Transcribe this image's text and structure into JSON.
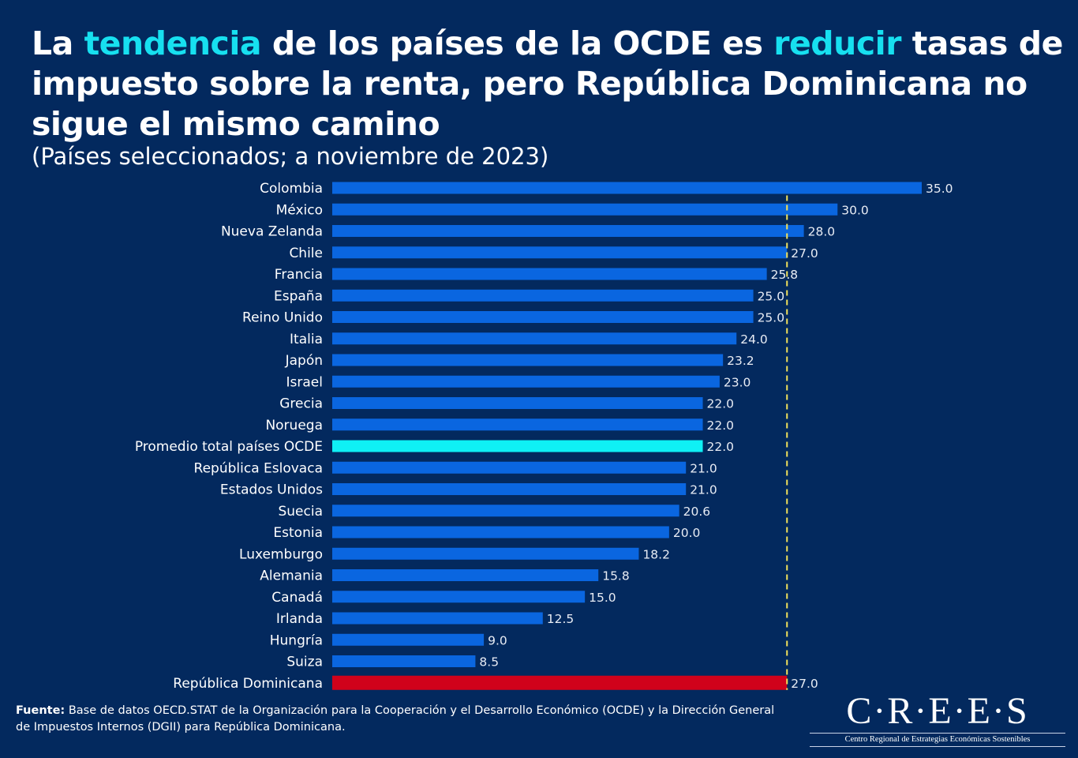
{
  "header": {
    "title_parts": [
      {
        "text": "La ",
        "highlight": false
      },
      {
        "text": "tendencia",
        "highlight": true
      },
      {
        "text": " de los países de la OCDE es ",
        "highlight": false
      },
      {
        "text": "reducir",
        "highlight": true
      },
      {
        "text": " tasas de impuesto sobre la renta, pero República Dominicana no sigue el mismo camino",
        "highlight": false
      }
    ],
    "subtitle": "(Países seleccionados; a noviembre de 2023)"
  },
  "colors": {
    "background": "#03295e",
    "bar_default": "#0a66e0",
    "bar_average": "#0ff0f5",
    "bar_dominican": "#d0021b",
    "highlight_text": "#17e0f0",
    "reference_line": "#f3e25a"
  },
  "chart_data": {
    "type": "bar",
    "orientation": "horizontal",
    "title": "La tendencia de los países de la OCDE es reducir tasas de impuesto sobre la renta, pero República Dominicana no sigue el mismo camino",
    "subtitle": "(Países seleccionados; a noviembre de 2023)",
    "xlabel": "",
    "ylabel": "",
    "xlim": [
      0,
      35
    ],
    "grid": false,
    "legend": "none",
    "categories": [
      "Colombia",
      "México",
      "Nueva Zelanda",
      "Chile",
      "Francia",
      "España",
      "Reino Unido",
      "Italia",
      "Japón",
      "Israel",
      "Grecia",
      "Noruega",
      "Promedio total países OCDE",
      "República Eslovaca",
      "Estados Unidos",
      "Suecia",
      "Estonia",
      "Luxemburgo",
      "Alemania",
      "Canadá",
      "Irlanda",
      "Hungría",
      "Suiza",
      "República Dominicana"
    ],
    "values": [
      35.0,
      30.0,
      28.0,
      27.0,
      25.8,
      25.0,
      25.0,
      24.0,
      23.2,
      23.0,
      22.0,
      22.0,
      22.0,
      21.0,
      21.0,
      20.6,
      20.0,
      18.2,
      15.8,
      15.0,
      12.5,
      9.0,
      8.5,
      27.0
    ],
    "value_labels": [
      "35.0",
      "30.0",
      "28.0",
      "27.0",
      "25.8",
      "25.0",
      "25.0",
      "24.0",
      "23.2",
      "23.0",
      "22.0",
      "22.0",
      "22.0",
      "21.0",
      "21.0",
      "20.6",
      "20.0",
      "18.2",
      "15.8",
      "15.0",
      "12.5",
      "9.0",
      "8.5",
      "27.0"
    ],
    "bar_kind": [
      "default",
      "default",
      "default",
      "default",
      "default",
      "default",
      "default",
      "default",
      "default",
      "default",
      "default",
      "default",
      "average",
      "default",
      "default",
      "default",
      "default",
      "default",
      "default",
      "default",
      "default",
      "default",
      "default",
      "dominican"
    ],
    "reference_line": {
      "value": 27.0,
      "style": "dashed"
    }
  },
  "footer": {
    "source_label": "Fuente:",
    "source_text": " Base de datos OECD.STAT de la Organización para la Cooperación y el Desarrollo Económico (OCDE) y la Dirección General de Impuestos Internos (DGII) para República Dominicana."
  },
  "logo": {
    "name": "C·R·E·E·S",
    "tagline": "Centro Regional de Estrategias Económicas Sostenibles"
  }
}
